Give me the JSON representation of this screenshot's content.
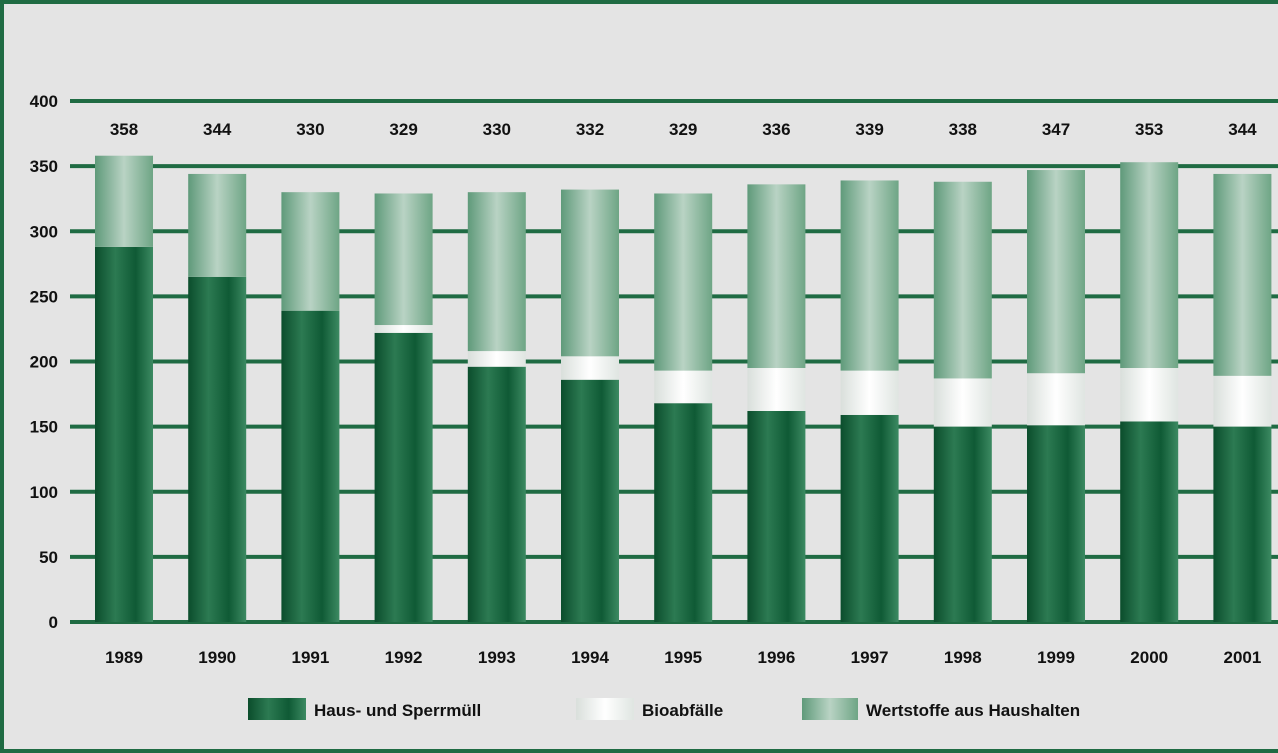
{
  "chart_data": {
    "type": "bar",
    "stacked": true,
    "title": "",
    "xlabel": "",
    "ylabel": "",
    "ylim": [
      0,
      400
    ],
    "yticks": [
      0,
      50,
      100,
      150,
      200,
      250,
      300,
      350,
      400
    ],
    "grid": true,
    "legend_position": "bottom",
    "categories": [
      "1989",
      "1990",
      "1991",
      "1992",
      "1993",
      "1994",
      "1995",
      "1996",
      "1997",
      "1998",
      "1999",
      "2000",
      "2001"
    ],
    "series": [
      {
        "name": "Haus- und Sperrmüll",
        "color": "#0f5a35",
        "values": [
          288,
          265,
          239,
          222,
          196,
          186,
          168,
          162,
          159,
          150,
          151,
          154,
          150
        ]
      },
      {
        "name": "Bioabfälle",
        "color": "#f2f2f2",
        "values": [
          0,
          0,
          0,
          6,
          12,
          18,
          25,
          33,
          34,
          37,
          40,
          41,
          39
        ]
      },
      {
        "name": "Wertstoffe aus Haushalten",
        "color": "#8db8a0",
        "values": [
          70,
          79,
          91,
          101,
          122,
          128,
          136,
          141,
          146,
          151,
          156,
          158,
          155
        ]
      }
    ],
    "totals": [
      358,
      344,
      330,
      329,
      330,
      332,
      329,
      336,
      339,
      338,
      347,
      353,
      344
    ]
  }
}
